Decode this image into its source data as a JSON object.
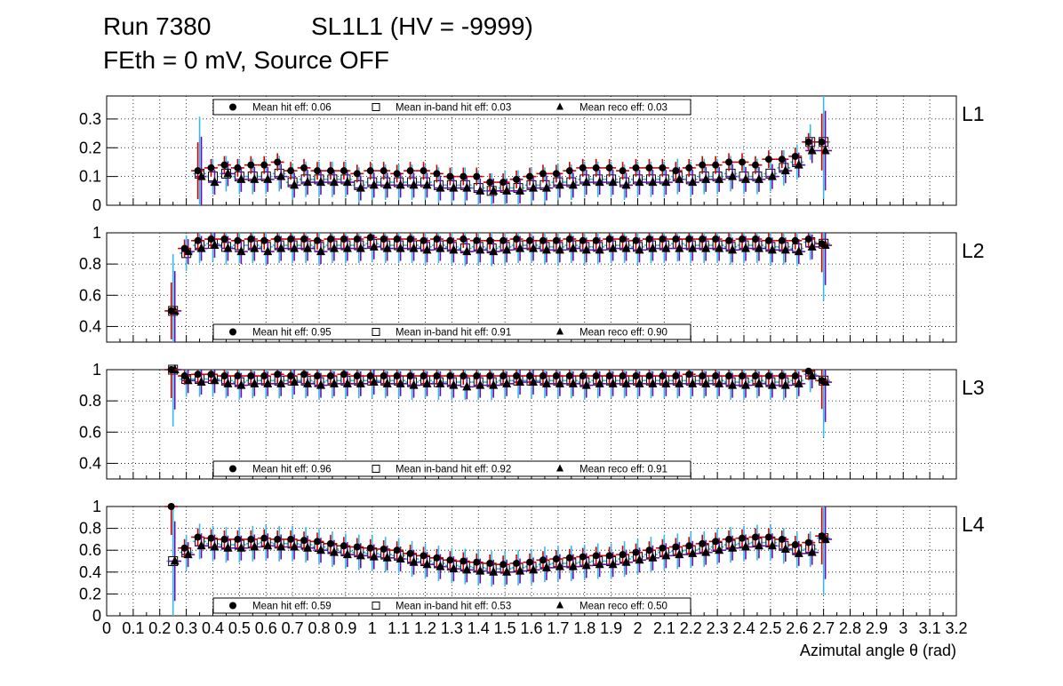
{
  "header": {
    "run": "Run 7380",
    "chamber": "SL1L1 (HV = -9999)",
    "conditions": "FEth = 0 mV, Source OFF"
  },
  "colors": {
    "hit_err": "#cc0000",
    "inband_err": "#33bbee",
    "reco_err": "#6a0dad",
    "frame": "#000000",
    "grid": "#000000"
  },
  "chart_data": {
    "type": "scatter",
    "xlabel": "Azimutal angle θ (rad)",
    "xlim": [
      0,
      3.2
    ],
    "x_ticks": [
      "0",
      "0.1",
      "0.2",
      "0.3",
      "0.4",
      "0.5",
      "0.6",
      "0.7",
      "0.8",
      "0.9",
      "1",
      "1.1",
      "1.2",
      "1.3",
      "1.4",
      "1.5",
      "1.6",
      "1.7",
      "1.8",
      "1.9",
      "2",
      "2.1",
      "2.2",
      "2.3",
      "2.4",
      "2.5",
      "2.6",
      "2.7",
      "2.8",
      "2.9",
      "3",
      "3.1",
      "3.2"
    ],
    "bin_width": 0.05,
    "series_names": [
      "Mean hit  eff",
      "Mean in-band hit eff",
      "Mean reco eff"
    ],
    "panels": [
      {
        "label": "L1",
        "ylim": [
          0,
          0.38
        ],
        "y_ticks": [
          "0",
          "0.1",
          "0.2",
          "0.3"
        ],
        "legend_position": "top-left",
        "legend": [
          "Mean hit  eff: 0.06",
          "Mean in-band hit eff: 0.03",
          "Mean reco eff: 0.03"
        ],
        "x": [
          0.35,
          0.4,
          0.45,
          0.5,
          0.55,
          0.6,
          0.65,
          0.7,
          0.75,
          0.8,
          0.85,
          0.9,
          0.95,
          1.0,
          1.05,
          1.1,
          1.15,
          1.2,
          1.25,
          1.3,
          1.35,
          1.4,
          1.45,
          1.5,
          1.55,
          1.6,
          1.65,
          1.7,
          1.75,
          1.8,
          1.85,
          1.9,
          1.95,
          2.0,
          2.05,
          2.1,
          2.15,
          2.2,
          2.25,
          2.3,
          2.35,
          2.4,
          2.45,
          2.5,
          2.55,
          2.6,
          2.65,
          2.7
        ],
        "hit": [
          0.12,
          0.13,
          0.14,
          0.13,
          0.14,
          0.14,
          0.15,
          0.12,
          0.13,
          0.12,
          0.12,
          0.12,
          0.11,
          0.12,
          0.12,
          0.11,
          0.12,
          0.12,
          0.11,
          0.1,
          0.1,
          0.1,
          0.08,
          0.08,
          0.09,
          0.1,
          0.11,
          0.11,
          0.12,
          0.13,
          0.13,
          0.13,
          0.12,
          0.13,
          0.13,
          0.13,
          0.12,
          0.13,
          0.14,
          0.14,
          0.15,
          0.15,
          0.14,
          0.16,
          0.16,
          0.17,
          0.22,
          0.22
        ],
        "inband": [
          0.11,
          0.1,
          0.11,
          0.1,
          0.1,
          0.1,
          0.11,
          0.08,
          0.09,
          0.09,
          0.09,
          0.09,
          0.07,
          0.08,
          0.08,
          0.08,
          0.08,
          0.08,
          0.07,
          0.07,
          0.07,
          0.06,
          0.05,
          0.06,
          0.06,
          0.07,
          0.07,
          0.08,
          0.08,
          0.09,
          0.09,
          0.09,
          0.08,
          0.09,
          0.09,
          0.09,
          0.1,
          0.09,
          0.1,
          0.1,
          0.11,
          0.1,
          0.1,
          0.11,
          0.13,
          0.15,
          0.22,
          0.22
        ],
        "reco": [
          0.1,
          0.08,
          0.11,
          0.09,
          0.09,
          0.09,
          0.1,
          0.07,
          0.08,
          0.08,
          0.08,
          0.08,
          0.06,
          0.07,
          0.07,
          0.07,
          0.07,
          0.07,
          0.06,
          0.06,
          0.06,
          0.05,
          0.05,
          0.05,
          0.05,
          0.06,
          0.06,
          0.07,
          0.07,
          0.08,
          0.08,
          0.08,
          0.07,
          0.08,
          0.08,
          0.08,
          0.09,
          0.08,
          0.09,
          0.09,
          0.1,
          0.09,
          0.09,
          0.1,
          0.12,
          0.14,
          0.19,
          0.19
        ]
      },
      {
        "label": "L2",
        "ylim": [
          0.3,
          1.0
        ],
        "y_ticks": [
          "0.4",
          "0.6",
          "0.8",
          "1"
        ],
        "legend_position": "bottom-left",
        "legend": [
          "Mean hit  eff: 0.95",
          "Mean in-band hit eff: 0.91",
          "Mean reco eff: 0.90"
        ],
        "x": [
          0.25,
          0.3,
          0.35,
          0.4,
          0.45,
          0.5,
          0.55,
          0.6,
          0.65,
          0.7,
          0.75,
          0.8,
          0.85,
          0.9,
          0.95,
          1.0,
          1.05,
          1.1,
          1.15,
          1.2,
          1.25,
          1.3,
          1.35,
          1.4,
          1.45,
          1.5,
          1.55,
          1.6,
          1.65,
          1.7,
          1.75,
          1.8,
          1.85,
          1.9,
          1.95,
          2.0,
          2.05,
          2.1,
          2.15,
          2.2,
          2.25,
          2.3,
          2.35,
          2.4,
          2.45,
          2.5,
          2.55,
          2.6,
          2.65,
          2.7
        ],
        "hit": [
          0.5,
          0.9,
          0.95,
          0.96,
          0.96,
          0.95,
          0.96,
          0.95,
          0.96,
          0.96,
          0.96,
          0.95,
          0.96,
          0.96,
          0.96,
          0.97,
          0.96,
          0.96,
          0.96,
          0.95,
          0.96,
          0.95,
          0.96,
          0.95,
          0.95,
          0.95,
          0.96,
          0.95,
          0.95,
          0.95,
          0.96,
          0.95,
          0.95,
          0.96,
          0.96,
          0.95,
          0.96,
          0.96,
          0.96,
          0.96,
          0.96,
          0.96,
          0.95,
          0.96,
          0.96,
          0.95,
          0.95,
          0.95,
          0.96,
          0.93
        ],
        "inband": [
          0.5,
          0.87,
          0.92,
          0.93,
          0.91,
          0.92,
          0.92,
          0.91,
          0.92,
          0.92,
          0.92,
          0.91,
          0.92,
          0.92,
          0.92,
          0.93,
          0.92,
          0.92,
          0.92,
          0.91,
          0.92,
          0.91,
          0.9,
          0.91,
          0.9,
          0.91,
          0.92,
          0.92,
          0.91,
          0.91,
          0.92,
          0.91,
          0.91,
          0.92,
          0.92,
          0.91,
          0.92,
          0.92,
          0.93,
          0.92,
          0.92,
          0.92,
          0.91,
          0.92,
          0.92,
          0.91,
          0.91,
          0.9,
          0.94,
          0.93
        ],
        "reco": [
          0.5,
          0.88,
          0.9,
          0.92,
          0.9,
          0.88,
          0.9,
          0.88,
          0.9,
          0.9,
          0.9,
          0.88,
          0.9,
          0.9,
          0.9,
          0.91,
          0.9,
          0.9,
          0.9,
          0.89,
          0.9,
          0.89,
          0.88,
          0.89,
          0.88,
          0.89,
          0.9,
          0.9,
          0.89,
          0.89,
          0.9,
          0.89,
          0.89,
          0.9,
          0.9,
          0.89,
          0.9,
          0.9,
          0.9,
          0.9,
          0.9,
          0.9,
          0.89,
          0.9,
          0.9,
          0.89,
          0.89,
          0.88,
          0.91,
          0.92
        ]
      },
      {
        "label": "L3",
        "ylim": [
          0.3,
          1.0
        ],
        "y_ticks": [
          "0.4",
          "0.6",
          "0.8",
          "1"
        ],
        "legend_position": "bottom-left",
        "legend": [
          "Mean hit  eff: 0.96",
          "Mean in-band hit eff: 0.92",
          "Mean reco eff: 0.91"
        ],
        "x": [
          0.25,
          0.3,
          0.35,
          0.4,
          0.45,
          0.5,
          0.55,
          0.6,
          0.65,
          0.7,
          0.75,
          0.8,
          0.85,
          0.9,
          0.95,
          1.0,
          1.05,
          1.1,
          1.15,
          1.2,
          1.25,
          1.3,
          1.35,
          1.4,
          1.45,
          1.5,
          1.55,
          1.6,
          1.65,
          1.7,
          1.75,
          1.8,
          1.85,
          1.9,
          1.95,
          2.0,
          2.05,
          2.1,
          2.15,
          2.2,
          2.25,
          2.3,
          2.35,
          2.4,
          2.45,
          2.5,
          2.55,
          2.6,
          2.65,
          2.7
        ],
        "hit": [
          1.0,
          0.96,
          0.97,
          0.97,
          0.96,
          0.96,
          0.96,
          0.96,
          0.97,
          0.96,
          0.97,
          0.96,
          0.96,
          0.97,
          0.96,
          0.96,
          0.96,
          0.96,
          0.96,
          0.96,
          0.96,
          0.96,
          0.96,
          0.96,
          0.96,
          0.96,
          0.96,
          0.96,
          0.96,
          0.96,
          0.96,
          0.96,
          0.96,
          0.96,
          0.96,
          0.96,
          0.96,
          0.96,
          0.96,
          0.97,
          0.96,
          0.96,
          0.96,
          0.96,
          0.96,
          0.96,
          0.96,
          0.96,
          0.99,
          0.93
        ],
        "inband": [
          1.0,
          0.94,
          0.94,
          0.94,
          0.93,
          0.92,
          0.93,
          0.93,
          0.93,
          0.93,
          0.93,
          0.92,
          0.93,
          0.93,
          0.93,
          0.93,
          0.93,
          0.93,
          0.92,
          0.93,
          0.92,
          0.92,
          0.92,
          0.92,
          0.92,
          0.93,
          0.93,
          0.93,
          0.93,
          0.93,
          0.93,
          0.92,
          0.93,
          0.93,
          0.93,
          0.93,
          0.93,
          0.93,
          0.93,
          0.93,
          0.93,
          0.93,
          0.92,
          0.92,
          0.93,
          0.92,
          0.92,
          0.93,
          0.97,
          0.93
        ],
        "reco": [
          1.0,
          0.93,
          0.92,
          0.93,
          0.91,
          0.9,
          0.91,
          0.91,
          0.91,
          0.92,
          0.91,
          0.9,
          0.91,
          0.91,
          0.91,
          0.92,
          0.91,
          0.91,
          0.9,
          0.91,
          0.91,
          0.9,
          0.89,
          0.9,
          0.9,
          0.91,
          0.92,
          0.92,
          0.91,
          0.91,
          0.91,
          0.9,
          0.91,
          0.91,
          0.91,
          0.91,
          0.91,
          0.91,
          0.91,
          0.91,
          0.91,
          0.91,
          0.9,
          0.9,
          0.91,
          0.9,
          0.9,
          0.91,
          0.96,
          0.92
        ]
      },
      {
        "label": "L4",
        "ylim": [
          0,
          1.0
        ],
        "y_ticks": [
          "0",
          "0.2",
          "0.4",
          "0.6",
          "0.8",
          "1"
        ],
        "legend_position": "bottom-left",
        "legend": [
          "Mean hit  eff: 0.59",
          "Mean in-band hit eff: 0.53",
          "Mean reco eff: 0.50"
        ],
        "x": [
          0.25,
          0.3,
          0.35,
          0.4,
          0.45,
          0.5,
          0.55,
          0.6,
          0.65,
          0.7,
          0.75,
          0.8,
          0.85,
          0.9,
          0.95,
          1.0,
          1.05,
          1.1,
          1.15,
          1.2,
          1.25,
          1.3,
          1.35,
          1.4,
          1.45,
          1.5,
          1.55,
          1.6,
          1.65,
          1.7,
          1.75,
          1.8,
          1.85,
          1.9,
          1.95,
          2.0,
          2.05,
          2.1,
          2.15,
          2.2,
          2.25,
          2.3,
          2.35,
          2.4,
          2.45,
          2.5,
          2.55,
          2.6,
          2.65,
          2.7
        ],
        "hit": [
          1.0,
          0.62,
          0.72,
          0.71,
          0.7,
          0.7,
          0.7,
          0.71,
          0.7,
          0.7,
          0.69,
          0.68,
          0.66,
          0.64,
          0.63,
          0.62,
          0.61,
          0.6,
          0.57,
          0.55,
          0.53,
          0.51,
          0.5,
          0.49,
          0.48,
          0.47,
          0.48,
          0.49,
          0.51,
          0.52,
          0.53,
          0.54,
          0.55,
          0.55,
          0.56,
          0.58,
          0.6,
          0.62,
          0.63,
          0.64,
          0.66,
          0.68,
          0.7,
          0.71,
          0.72,
          0.72,
          0.7,
          0.65,
          0.67,
          0.73
        ],
        "inband": [
          0.5,
          0.58,
          0.68,
          0.66,
          0.65,
          0.65,
          0.66,
          0.67,
          0.66,
          0.66,
          0.65,
          0.63,
          0.61,
          0.59,
          0.58,
          0.57,
          0.56,
          0.55,
          0.52,
          0.5,
          0.48,
          0.46,
          0.45,
          0.44,
          0.43,
          0.43,
          0.44,
          0.45,
          0.47,
          0.48,
          0.48,
          0.49,
          0.5,
          0.5,
          0.52,
          0.54,
          0.56,
          0.58,
          0.59,
          0.6,
          0.61,
          0.63,
          0.65,
          0.66,
          0.67,
          0.67,
          0.64,
          0.6,
          0.61,
          0.71
        ],
        "reco": [
          0.5,
          0.56,
          0.64,
          0.63,
          0.62,
          0.62,
          0.63,
          0.64,
          0.63,
          0.63,
          0.62,
          0.6,
          0.58,
          0.56,
          0.55,
          0.54,
          0.53,
          0.52,
          0.49,
          0.47,
          0.45,
          0.43,
          0.42,
          0.41,
          0.4,
          0.4,
          0.41,
          0.42,
          0.44,
          0.45,
          0.45,
          0.46,
          0.47,
          0.47,
          0.49,
          0.51,
          0.53,
          0.55,
          0.56,
          0.57,
          0.58,
          0.6,
          0.62,
          0.63,
          0.64,
          0.64,
          0.61,
          0.57,
          0.58,
          0.7
        ]
      }
    ]
  }
}
